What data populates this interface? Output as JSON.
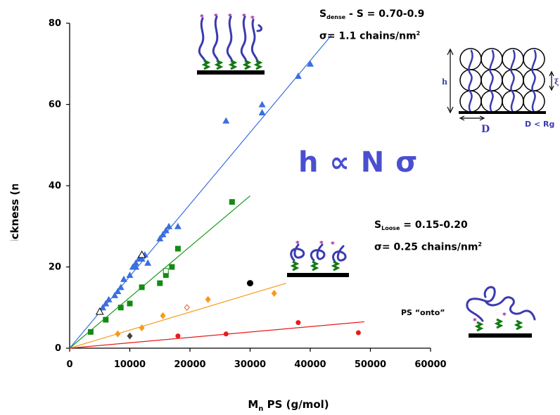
{
  "chart_data": {
    "type": "scatter",
    "xlabel_main": "M",
    "xlabel_sub": "n",
    "xlabel_rest": " PS (g/mol)",
    "ylabel": "Thickness (nm)",
    "xlim": [
      0,
      60000
    ],
    "ylim": [
      0,
      80
    ],
    "xticks": [
      "0",
      "10000",
      "20000",
      "30000",
      "40000",
      "50000",
      "60000"
    ],
    "yticks": [
      "0",
      "20",
      "40",
      "60",
      "80"
    ],
    "grid": false,
    "series": [
      {
        "marker": "triangle",
        "color": "#3a6fe0",
        "line_color": "#3a6fe0",
        "fit": [
          [
            0,
            0
          ],
          [
            43500,
            77
          ]
        ],
        "points": [
          [
            5500,
            10
          ],
          [
            6000,
            11
          ],
          [
            6500,
            12
          ],
          [
            7500,
            13
          ],
          [
            8000,
            14
          ],
          [
            8500,
            15
          ],
          [
            9000,
            17
          ],
          [
            10000,
            18
          ],
          [
            10500,
            20
          ],
          [
            11000,
            21
          ],
          [
            11000,
            20
          ],
          [
            11500,
            22
          ],
          [
            12000,
            22
          ],
          [
            12500,
            23
          ],
          [
            13000,
            21
          ],
          [
            15000,
            27
          ],
          [
            15500,
            28
          ],
          [
            16000,
            29
          ],
          [
            16500,
            30
          ],
          [
            18000,
            30
          ],
          [
            26000,
            56
          ],
          [
            32000,
            58
          ],
          [
            32000,
            60
          ],
          [
            38000,
            67
          ],
          [
            40000,
            70
          ]
        ]
      },
      {
        "marker": "triangle-open",
        "color": "#000000",
        "points": [
          [
            5000,
            9
          ],
          [
            12000,
            23
          ]
        ]
      },
      {
        "marker": "square",
        "color": "#148a14",
        "line_color": "#159915",
        "fit": [
          [
            0,
            0
          ],
          [
            30000,
            37.5
          ]
        ],
        "points": [
          [
            3500,
            4
          ],
          [
            6000,
            7
          ],
          [
            8500,
            10
          ],
          [
            10000,
            11
          ],
          [
            12000,
            15
          ],
          [
            15000,
            16
          ],
          [
            16000,
            18
          ],
          [
            17000,
            20
          ],
          [
            18000,
            24.5
          ],
          [
            27000,
            36
          ]
        ]
      },
      {
        "marker": "square-open",
        "color": "#148a14",
        "points": [
          [
            16000,
            19
          ]
        ]
      },
      {
        "marker": "diamond",
        "color": "#f79a1a",
        "line_color": "#f79a1a",
        "fit": [
          [
            0,
            0
          ],
          [
            36000,
            16
          ]
        ],
        "points": [
          [
            8000,
            3.5
          ],
          [
            12000,
            5
          ],
          [
            15500,
            8
          ],
          [
            23000,
            12
          ],
          [
            34000,
            13.5
          ]
        ]
      },
      {
        "marker": "diamond-open",
        "color": "#e0662a",
        "points": [
          [
            19500,
            10
          ]
        ]
      },
      {
        "marker": "diamond",
        "color": "#444444",
        "points": [
          [
            10000,
            3
          ]
        ]
      },
      {
        "marker": "circle",
        "color": "#e81a1a",
        "line_color": "#e81a1a",
        "fit": [
          [
            0,
            0
          ],
          [
            49000,
            6.5
          ]
        ],
        "points": [
          [
            18000,
            3
          ],
          [
            26000,
            3.5
          ],
          [
            38000,
            6.3
          ],
          [
            48000,
            3.8
          ]
        ]
      },
      {
        "marker": "circle-big",
        "color": "#000000",
        "points": [
          [
            30000,
            16
          ]
        ]
      }
    ]
  },
  "annotations": {
    "dense_line1_a": "S",
    "dense_line1_sub": "dense",
    "dense_line1_b": " - S = 0.70-0.9",
    "dense_line2_a": "σ",
    "dense_line2_b": "= 1.1 chains/nm",
    "dense_line2_sup": "2",
    "loose_line1_a": "S",
    "loose_line1_sub": "Loose",
    "loose_line1_b": " = 0.15-0.20",
    "loose_line2_a": "σ",
    "loose_line2_b": "= 0.25 chains/nm",
    "loose_line2_sup": "2",
    "formula": "h ∝ N σ",
    "onto": "PS “onto”",
    "diagram_h": "h",
    "diagram_D": "D",
    "diagram_rel": "D < Rg",
    "diagram_xi": "ξ"
  },
  "colors": {
    "brush_chain": "#3b3bb0",
    "anchor_green": "#127a12",
    "chain_end": "#a01aa0",
    "formula": "#4a4fd1"
  }
}
